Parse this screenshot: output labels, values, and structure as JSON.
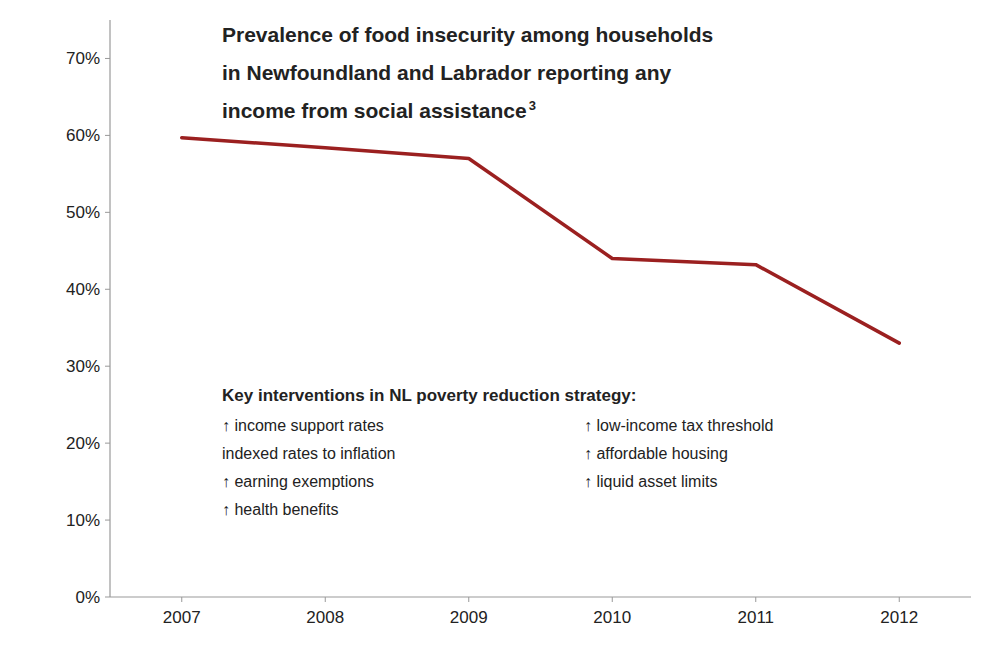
{
  "chart_data": {
    "type": "line",
    "title": [
      "Prevalence of food insecurity among households",
      "in Newfoundland and Labrador reporting any",
      "income from social assistance"
    ],
    "superscript": "3",
    "x": [
      2007,
      2008,
      2009,
      2010,
      2011,
      2012
    ],
    "values": [
      0.597,
      0.584,
      0.57,
      0.44,
      0.432,
      0.33
    ],
    "color": "#9B2020",
    "xlim": [
      2006.5,
      2012.5
    ],
    "xticks": [
      2007,
      2008,
      2009,
      2010,
      2011,
      2012
    ],
    "ylim": [
      0,
      0.75
    ],
    "yticks": [
      {
        "value": 0.0,
        "label": "0%"
      },
      {
        "value": 0.1,
        "label": "10%"
      },
      {
        "value": 0.2,
        "label": "20%"
      },
      {
        "value": 0.3,
        "label": "30%"
      },
      {
        "value": 0.4,
        "label": "40%"
      },
      {
        "value": 0.5,
        "label": "50%"
      },
      {
        "value": 0.6,
        "label": "60%"
      },
      {
        "value": 0.7,
        "label": "70%"
      }
    ],
    "grid": false,
    "annotations": {
      "title": "Key interventions in NL poverty reduction strategy:",
      "columns": [
        [
          "↑ income support rates",
          "indexed rates to inflation",
          "↑ earning exemptions",
          "↑ health benefits"
        ],
        [
          "↑ low-income tax threshold",
          "↑ affordable housing",
          "↑ liquid asset limits"
        ]
      ]
    }
  }
}
